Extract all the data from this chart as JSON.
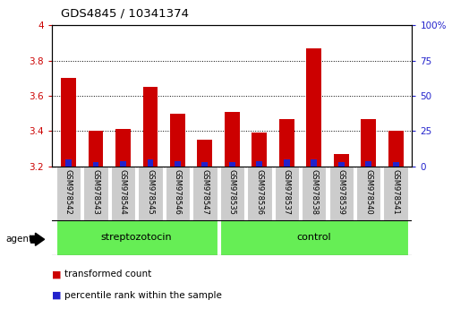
{
  "title": "GDS4845 / 10341374",
  "samples": [
    "GSM978542",
    "GSM978543",
    "GSM978544",
    "GSM978545",
    "GSM978546",
    "GSM978547",
    "GSM978535",
    "GSM978536",
    "GSM978537",
    "GSM978538",
    "GSM978539",
    "GSM978540",
    "GSM978541"
  ],
  "transformed_counts": [
    3.7,
    3.4,
    3.41,
    3.65,
    3.5,
    3.35,
    3.51,
    3.39,
    3.47,
    3.87,
    3.27,
    3.47,
    3.4
  ],
  "percentile_ranks": [
    5,
    3,
    4,
    5,
    4,
    3,
    3,
    4,
    5,
    5,
    3,
    4,
    3
  ],
  "ylim_left": [
    3.2,
    4.0
  ],
  "ylim_right": [
    0,
    100
  ],
  "yticks_left": [
    3.2,
    3.4,
    3.6,
    3.8,
    4.0
  ],
  "ytick_labels_left": [
    "3.2",
    "3.4",
    "3.6",
    "3.8",
    "4"
  ],
  "yticks_right": [
    0,
    25,
    50,
    75,
    100
  ],
  "ytick_labels_right": [
    "0",
    "25",
    "50",
    "75",
    "100%"
  ],
  "bar_color_red": "#cc0000",
  "bar_color_blue": "#2222cc",
  "baseline": 3.2,
  "background_color": "#ffffff",
  "tick_label_color_left": "#cc0000",
  "tick_label_color_right": "#2222cc",
  "group_bg_color": "#66ee55",
  "sample_bg_color": "#cccccc",
  "legend_red_label": "transformed count",
  "legend_blue_label": "percentile rank within the sample",
  "agent_label": "agent",
  "groups_info": [
    {
      "label": "streptozotocin",
      "start": 0,
      "end": 5
    },
    {
      "label": "control",
      "start": 6,
      "end": 12
    }
  ]
}
